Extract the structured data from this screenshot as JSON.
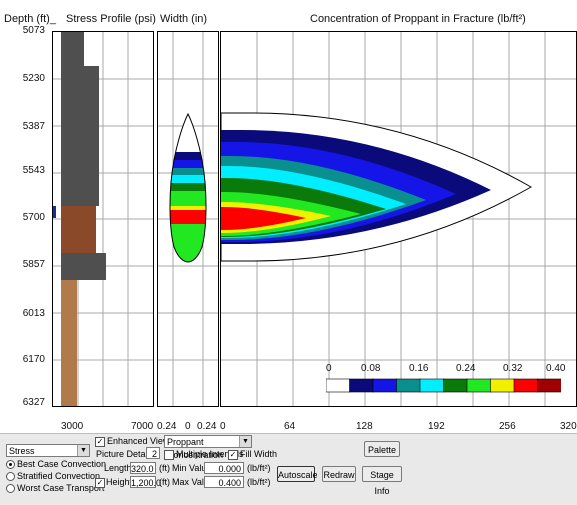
{
  "headers": {
    "depth": "Depth (ft)_",
    "stress": "Stress Profile (psi)",
    "width": "Width (in)",
    "concentration": "Concentration of Proppant in Fracture  (lb/ft²)"
  },
  "depth_labels": [
    "5073",
    "5230",
    "5387",
    "5543",
    "5700",
    "5857",
    "6013",
    "6170",
    "6327"
  ],
  "stress_ticks": [
    "3000",
    "7000"
  ],
  "width_ticks": [
    "0.24",
    "0",
    "0.24"
  ],
  "conc_ticks": [
    "0",
    "64",
    "128",
    "192",
    "256",
    "320"
  ],
  "legend": {
    "labels": [
      "0",
      "0.08",
      "0.16",
      "0.24",
      "0.32",
      "0.40"
    ],
    "colors": [
      "#ffffff",
      "#0a0a7a",
      "#1515e8",
      "#0a8f8f",
      "#00eeff",
      "#0a7a0a",
      "#22e822",
      "#f0f000",
      "#ff0000",
      "#a00000"
    ]
  },
  "colors": {
    "shale": "#4f4f4f",
    "sandstone": "#8a4a2a",
    "lower_sand": "#b07a4a",
    "grid": "#a8a8a8"
  },
  "toolbar": {
    "left_combo": "Stress",
    "enhanced_view": "Enhanced View",
    "picture_details_label": "Picture Details",
    "picture_details_value": "2",
    "plot_combo": "Proppant Concentration",
    "multiple_intervals": "Multiple Intervals",
    "fill_width": "Fill Width",
    "palette": "Palette",
    "radio_best": "Best Case Convection",
    "radio_stratified": "Stratified Convection",
    "radio_worst": "Worst Case Transport",
    "length_label": "Length",
    "length_value": "320.0",
    "length_unit": "(ft)",
    "height_label": "Height",
    "height_value": "1,200.0",
    "height_unit": "(ft)",
    "min_label": "Min Value",
    "min_value": "0.000",
    "min_unit": "(lb/ft²)",
    "max_label": "Max Value",
    "max_value": "0.400",
    "max_unit": "(lb/ft²)",
    "autoscale": "Autoscale",
    "redraw": "Redraw",
    "stage_info": "Stage Info"
  }
}
